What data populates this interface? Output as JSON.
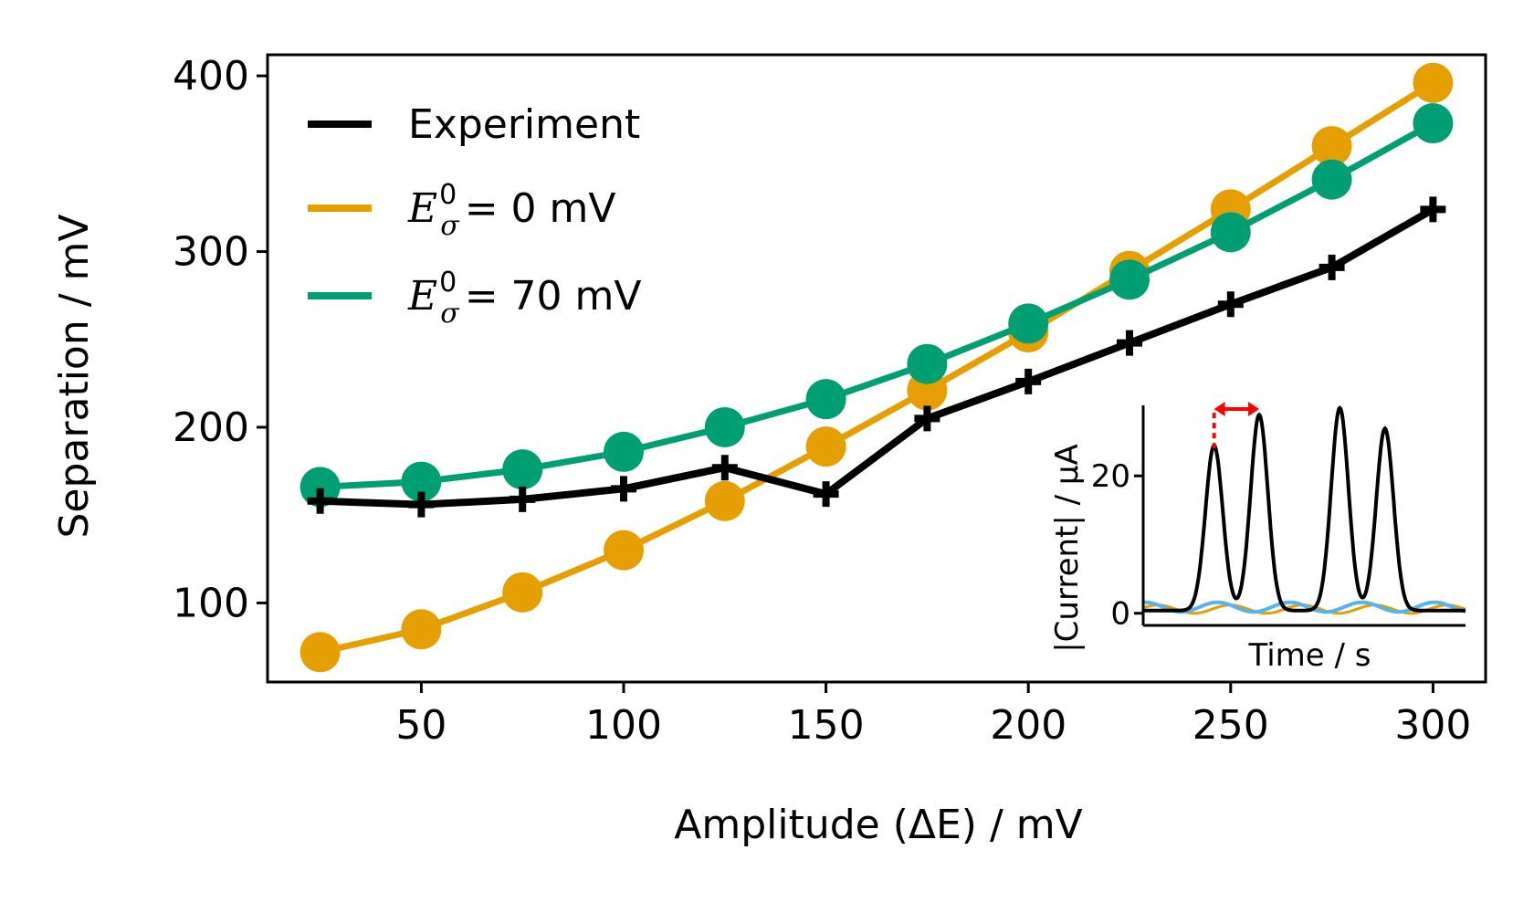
{
  "chart_data": [
    {
      "type": "line",
      "xlabel": "Amplitude (ΔE) / mV",
      "ylabel": "Separation / mV",
      "xlim": [
        12,
        313
      ],
      "ylim": [
        55,
        412
      ],
      "xticks": [
        50,
        100,
        150,
        200,
        250,
        300
      ],
      "yticks": [
        100,
        200,
        300,
        400
      ],
      "grid": false,
      "legend_position": "top-left",
      "x": [
        25,
        50,
        75,
        100,
        125,
        150,
        175,
        200,
        225,
        250,
        275,
        300
      ],
      "series": [
        {
          "name": "Experiment",
          "color": "#000000",
          "marker": "plus",
          "values": [
            158,
            156,
            159,
            165,
            177,
            162,
            205,
            226,
            248,
            270,
            291,
            324
          ]
        },
        {
          "name": "E0σ = 0 mV",
          "legend_symbol": "E",
          "legend_sup": "0",
          "legend_sub": "σ",
          "legend_rest": "= 0 mV",
          "color": "#E69F00",
          "marker": "circle",
          "values": [
            72,
            85,
            106,
            130,
            158,
            189,
            221,
            254,
            289,
            324,
            360,
            396
          ]
        },
        {
          "name": "E0σ = 70 mV",
          "legend_symbol": "E",
          "legend_sup": "0",
          "legend_sub": "σ",
          "legend_rest": "= 70 mV",
          "color": "#009E73",
          "marker": "circle",
          "values": [
            166,
            169,
            176,
            186,
            200,
            216,
            236,
            259,
            284,
            311,
            341,
            373
          ]
        }
      ]
    },
    {
      "type": "line",
      "role": "inset",
      "xlabel": "Time / s",
      "ylabel": "|Current| / µA",
      "ylim": [
        -1.5,
        30
      ],
      "yticks": [
        0,
        20
      ],
      "peaks": [
        {
          "t": 0.22,
          "height": 24
        },
        {
          "t": 0.36,
          "height": 28.5
        },
        {
          "t": 0.61,
          "height": 29.5
        },
        {
          "t": 0.75,
          "height": 26.5
        }
      ],
      "series_colors": {
        "main": "#000000",
        "flat_1": "#E69F00",
        "flat_2": "#56B4E9"
      },
      "annotation_color": "#FF0000"
    }
  ]
}
